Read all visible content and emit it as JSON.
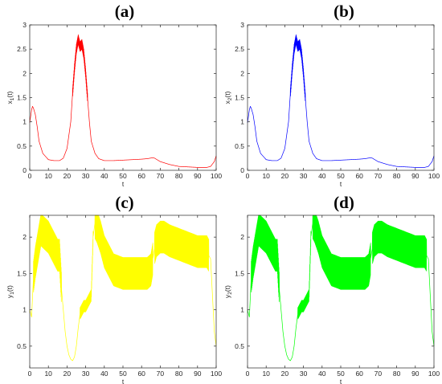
{
  "chart_data": [
    {
      "type": "line",
      "panel_label": "(a)",
      "xlabel": "t",
      "ylabel_base": "x",
      "ylabel_sub": "1",
      "ylabel_tail": "(t)",
      "xlim": [
        0,
        100
      ],
      "ylim": [
        0,
        3
      ],
      "xticks": [
        "0",
        "10",
        "20",
        "30",
        "40",
        "50",
        "60",
        "70",
        "80",
        "90",
        "100"
      ],
      "yticks": [
        "0",
        "0.5",
        "1",
        "1.5",
        "2",
        "2.5",
        "3"
      ],
      "color": "#ff0000",
      "grid": false,
      "series": [
        {
          "x": [
            0,
            1,
            1.5,
            2,
            3,
            4,
            5,
            7,
            10,
            13,
            16,
            18,
            20,
            22,
            23,
            24,
            25,
            26,
            27,
            28,
            29,
            30,
            31,
            32,
            33,
            35,
            37,
            40,
            45,
            50,
            55,
            60,
            63,
            66,
            67,
            70,
            75,
            80,
            85,
            90,
            95,
            97,
            99,
            100
          ],
          "y": [
            0.98,
            1.25,
            1.32,
            1.28,
            1.15,
            0.9,
            0.6,
            0.35,
            0.22,
            0.2,
            0.2,
            0.25,
            0.45,
            1.0,
            1.6,
            2.1,
            2.5,
            2.7,
            2.55,
            2.6,
            2.4,
            2.0,
            1.5,
            1.0,
            0.6,
            0.35,
            0.24,
            0.2,
            0.2,
            0.21,
            0.22,
            0.23,
            0.24,
            0.26,
            0.25,
            0.18,
            0.12,
            0.08,
            0.07,
            0.06,
            0.06,
            0.08,
            0.18,
            0.3
          ],
          "wiggle": [
            [
              23,
              31,
              0.1
            ]
          ]
        }
      ]
    },
    {
      "type": "line",
      "panel_label": "(b)",
      "xlabel": "t",
      "ylabel_base": "x",
      "ylabel_sub": "2",
      "ylabel_tail": "(t)",
      "xlim": [
        0,
        100
      ],
      "ylim": [
        0,
        3
      ],
      "xticks": [
        "0",
        "10",
        "20",
        "30",
        "40",
        "50",
        "60",
        "70",
        "80",
        "90",
        "100"
      ],
      "yticks": [
        "0",
        "0.5",
        "1",
        "1.5",
        "2",
        "2.5",
        "3"
      ],
      "color": "#0000ff",
      "grid": false,
      "series": [
        {
          "x": [
            0,
            1,
            1.5,
            2,
            3,
            4,
            5,
            7,
            10,
            13,
            16,
            18,
            20,
            22,
            23,
            24,
            25,
            26,
            27,
            28,
            29,
            30,
            31,
            32,
            33,
            35,
            37,
            40,
            45,
            50,
            55,
            60,
            63,
            66,
            67,
            70,
            75,
            80,
            85,
            90,
            95,
            97,
            99,
            100
          ],
          "y": [
            0.98,
            1.25,
            1.32,
            1.28,
            1.15,
            0.9,
            0.6,
            0.35,
            0.22,
            0.2,
            0.2,
            0.25,
            0.45,
            1.0,
            1.6,
            2.1,
            2.5,
            2.7,
            2.55,
            2.6,
            2.4,
            2.0,
            1.5,
            1.0,
            0.6,
            0.35,
            0.24,
            0.2,
            0.2,
            0.21,
            0.22,
            0.23,
            0.24,
            0.26,
            0.25,
            0.18,
            0.12,
            0.08,
            0.07,
            0.06,
            0.06,
            0.08,
            0.18,
            0.3
          ],
          "wiggle": [
            [
              23,
              31,
              0.1
            ]
          ]
        }
      ]
    },
    {
      "type": "line",
      "panel_label": "(c)",
      "xlabel": "t",
      "ylabel_base": "y",
      "ylabel_sub": "1",
      "ylabel_tail": "(t)",
      "xlim": [
        0,
        100
      ],
      "ylim": [
        0.2,
        2.3
      ],
      "xticks": [
        "0",
        "10",
        "20",
        "30",
        "40",
        "50",
        "60",
        "70",
        "80",
        "90",
        "100"
      ],
      "yticks": [
        "0.5",
        "1",
        "1.5",
        "2"
      ],
      "ytick_values": [
        0.5,
        1,
        1.5,
        2
      ],
      "color": "#ffff00",
      "grid": false,
      "series": [
        {
          "x": [
            0,
            1,
            2,
            3,
            4,
            5,
            6,
            8,
            10,
            12,
            14,
            15,
            16,
            17,
            18,
            19,
            20,
            21,
            22,
            23,
            24,
            25,
            26,
            27,
            28,
            29,
            30,
            31,
            32,
            33,
            34,
            35,
            36,
            38,
            40,
            45,
            50,
            55,
            60,
            63,
            65,
            66,
            67,
            68,
            70,
            72,
            75,
            80,
            85,
            90,
            95,
            97,
            98,
            99,
            100
          ],
          "y": [
            1.0,
            0.9,
            1.45,
            1.65,
            1.8,
            1.95,
            2.1,
            2.05,
            2.0,
            1.9,
            1.8,
            1.75,
            1.75,
            1.3,
            1.0,
            0.7,
            0.5,
            0.38,
            0.32,
            0.3,
            0.35,
            0.5,
            0.75,
            0.95,
            1.0,
            1.05,
            1.05,
            1.1,
            1.15,
            1.2,
            2.0,
            2.2,
            2.15,
            2.0,
            1.8,
            1.55,
            1.5,
            1.5,
            1.5,
            1.5,
            1.55,
            1.7,
            1.85,
            1.95,
            2.0,
            2.0,
            1.95,
            1.9,
            1.85,
            1.8,
            1.8,
            1.7,
            1.2,
            0.7,
            0.5
          ],
          "wiggle": [
            [
              2,
              17,
              0.22
            ],
            [
              27,
              34,
              0.08
            ],
            [
              35,
              66,
              0.22
            ],
            [
              67,
              96,
              0.22
            ]
          ]
        }
      ]
    },
    {
      "type": "line",
      "panel_label": "(d)",
      "xlabel": "t",
      "ylabel_base": "y",
      "ylabel_sub": "2",
      "ylabel_tail": "(t)",
      "xlim": [
        0,
        100
      ],
      "ylim": [
        0.2,
        2.3
      ],
      "xticks": [
        "0",
        "10",
        "20",
        "30",
        "40",
        "50",
        "60",
        "70",
        "80",
        "90",
        "100"
      ],
      "yticks": [
        "0.5",
        "1",
        "1.5",
        "2"
      ],
      "ytick_values": [
        0.5,
        1,
        1.5,
        2
      ],
      "color": "#00ff00",
      "grid": false,
      "series": [
        {
          "x": [
            0,
            1,
            2,
            3,
            4,
            5,
            6,
            8,
            10,
            12,
            14,
            15,
            16,
            17,
            18,
            19,
            20,
            21,
            22,
            23,
            24,
            25,
            26,
            27,
            28,
            29,
            30,
            31,
            32,
            33,
            34,
            35,
            36,
            38,
            40,
            45,
            50,
            55,
            60,
            63,
            65,
            66,
            67,
            68,
            70,
            72,
            75,
            80,
            85,
            90,
            95,
            97,
            98,
            99,
            100
          ],
          "y": [
            1.0,
            0.9,
            1.45,
            1.65,
            1.8,
            1.95,
            2.1,
            2.05,
            2.0,
            1.9,
            1.8,
            1.75,
            1.75,
            1.3,
            1.0,
            0.7,
            0.5,
            0.38,
            0.32,
            0.3,
            0.35,
            0.5,
            0.75,
            0.95,
            1.0,
            1.05,
            1.05,
            1.1,
            1.15,
            1.2,
            2.0,
            2.2,
            2.15,
            2.0,
            1.8,
            1.55,
            1.5,
            1.5,
            1.5,
            1.5,
            1.55,
            1.7,
            1.85,
            1.95,
            2.0,
            2.0,
            1.95,
            1.9,
            1.85,
            1.8,
            1.8,
            1.7,
            1.2,
            0.7,
            0.5
          ],
          "wiggle": [
            [
              2,
              17,
              0.22
            ],
            [
              27,
              34,
              0.08
            ],
            [
              35,
              66,
              0.22
            ],
            [
              67,
              96,
              0.22
            ]
          ]
        }
      ]
    }
  ]
}
